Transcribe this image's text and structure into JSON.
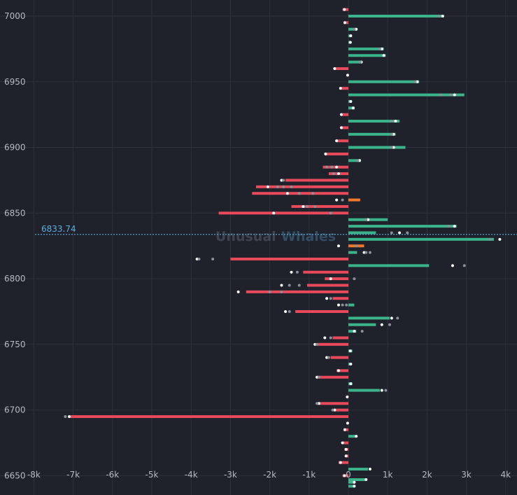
{
  "chart_data": {
    "type": "bar",
    "orientation": "horizontal",
    "watermark": [
      "Unusual",
      "Whales"
    ],
    "spot": {
      "price": 6833.74,
      "label": "6833.74"
    },
    "x_ticks": [
      -8000,
      -7000,
      -6000,
      -5000,
      -4000,
      -3000,
      -2000,
      -1000,
      0,
      1000,
      2000,
      3000,
      4000
    ],
    "x_tick_labels": [
      "-8k",
      "-7k",
      "-6k",
      "-5k",
      "-4k",
      "-3k",
      "-2k",
      "-1k",
      "0",
      "1k",
      "2k",
      "3k",
      "4k"
    ],
    "y_ticks": [
      6650,
      6700,
      6750,
      6800,
      6850,
      6900,
      6950,
      7000
    ],
    "xlim": [
      -8300,
      4300
    ],
    "ylim": [
      6650,
      7010
    ],
    "colors": {
      "positive": "#3bb38b",
      "negative": "#e8495b",
      "highlight": "#f0782a",
      "marker": "#ffffff",
      "marker_faded": "#8a8f98"
    },
    "bars": [
      {
        "strike": 7005,
        "value": -150,
        "markers": [
          -100
        ]
      },
      {
        "strike": 7000,
        "value": 2400,
        "markers": [
          2400,
          2300
        ]
      },
      {
        "strike": 6995,
        "value": -120,
        "markers": [
          -90
        ]
      },
      {
        "strike": 6990,
        "value": 200,
        "markers": [
          200,
          150
        ]
      },
      {
        "strike": 6985,
        "value": 80,
        "markers": [
          60
        ]
      },
      {
        "strike": 6980,
        "value": 70,
        "markers": [
          50
        ]
      },
      {
        "strike": 6975,
        "value": 900,
        "markers": [
          850,
          800
        ]
      },
      {
        "strike": 6970,
        "value": 950,
        "markers": [
          900
        ]
      },
      {
        "strike": 6965,
        "value": 350,
        "markers": [
          330,
          300
        ]
      },
      {
        "strike": 6960,
        "value": -350,
        "markers": [
          -350
        ]
      },
      {
        "strike": 6955,
        "value": -30,
        "markers": [
          -20
        ]
      },
      {
        "strike": 6950,
        "value": 1800,
        "markers": [
          1750,
          1700
        ]
      },
      {
        "strike": 6945,
        "value": -200,
        "markers": [
          -200
        ]
      },
      {
        "strike": 6940,
        "value": 2950,
        "markers": [
          2700,
          2600,
          2350
        ]
      },
      {
        "strike": 6935,
        "value": 80,
        "markers": [
          60
        ]
      },
      {
        "strike": 6930,
        "value": 160,
        "markers": [
          120
        ]
      },
      {
        "strike": 6925,
        "value": -180,
        "markers": [
          -180
        ]
      },
      {
        "strike": 6920,
        "value": 1300,
        "markers": [
          1200,
          1100
        ]
      },
      {
        "strike": 6915,
        "value": -200,
        "markers": [
          -180
        ]
      },
      {
        "strike": 6910,
        "value": 1200,
        "markers": [
          1150,
          1100
        ]
      },
      {
        "strike": 6905,
        "value": -300,
        "markers": [
          -300
        ]
      },
      {
        "strike": 6900,
        "value": 1450,
        "markers": [
          1150,
          1100
        ]
      },
      {
        "strike": 6895,
        "value": -600,
        "markers": [
          -580
        ]
      },
      {
        "strike": 6890,
        "value": 320,
        "markers": [
          280,
          240
        ]
      },
      {
        "strike": 6885,
        "value": -650,
        "markers": [
          -300,
          -420,
          -550
        ]
      },
      {
        "strike": 6880,
        "value": -500,
        "markers": [
          -250,
          -380
        ]
      },
      {
        "strike": 6875,
        "value": -1600,
        "markers": [
          -1700,
          -1650
        ]
      },
      {
        "strike": 6870,
        "value": -2350,
        "markers": [
          -2050,
          -1800,
          -1650,
          -1450
        ]
      },
      {
        "strike": 6865,
        "value": -2450,
        "markers": [
          -1550,
          -1250,
          -900
        ]
      },
      {
        "strike": 6860,
        "value": 300,
        "markers": [
          -300,
          -150
        ],
        "highlight": true
      },
      {
        "strike": 6855,
        "value": -1450,
        "markers": [
          -1150,
          -1050,
          -850
        ]
      },
      {
        "strike": 6850,
        "value": -3300,
        "markers": [
          -1900,
          -450
        ]
      },
      {
        "strike": 6845,
        "value": 1000,
        "markers": [
          500,
          450
        ]
      },
      {
        "strike": 6840,
        "value": 2750,
        "markers": [
          2700,
          2550
        ]
      },
      {
        "strike": 6835,
        "value": 700,
        "markers": [
          1300,
          1100,
          1500
        ]
      },
      {
        "strike": 6830,
        "value": 3700,
        "markers": [
          3850,
          3600
        ]
      },
      {
        "strike": 6825,
        "value": 400,
        "markers": [
          -250,
          200
        ],
        "highlight": true
      },
      {
        "strike": 6820,
        "value": 220,
        "markers": [
          400,
          550,
          450
        ]
      },
      {
        "strike": 6815,
        "value": -3000,
        "markers": [
          -3850,
          -3800,
          -3450
        ]
      },
      {
        "strike": 6810,
        "value": 2050,
        "markers": [
          2650,
          2950
        ]
      },
      {
        "strike": 6805,
        "value": -1150,
        "markers": [
          -1450,
          -1300
        ]
      },
      {
        "strike": 6800,
        "value": -600,
        "markers": [
          -450,
          150
        ]
      },
      {
        "strike": 6795,
        "value": -1050,
        "markers": [
          -1700,
          -1500,
          -1250
        ]
      },
      {
        "strike": 6790,
        "value": -2600,
        "markers": [
          -2800,
          -2000,
          -1700
        ]
      },
      {
        "strike": 6785,
        "value": -400,
        "markers": [
          -550,
          -450
        ]
      },
      {
        "strike": 6780,
        "value": 150,
        "markers": [
          -250,
          -150,
          -50
        ]
      },
      {
        "strike": 6775,
        "value": -1350,
        "markers": [
          -1600,
          -1500
        ]
      },
      {
        "strike": 6770,
        "value": 1050,
        "markers": [
          1100,
          1250
        ]
      },
      {
        "strike": 6765,
        "value": 700,
        "markers": [
          850,
          1050
        ]
      },
      {
        "strike": 6760,
        "value": 200,
        "markers": [
          150,
          350
        ]
      },
      {
        "strike": 6755,
        "value": -400,
        "markers": [
          -600,
          -450
        ]
      },
      {
        "strike": 6750,
        "value": -800,
        "markers": [
          -850,
          -800
        ]
      },
      {
        "strike": 6745,
        "value": 100,
        "markers": [
          50
        ]
      },
      {
        "strike": 6740,
        "value": -450,
        "markers": [
          -550,
          -500
        ]
      },
      {
        "strike": 6735,
        "value": 80,
        "markers": [
          60
        ]
      },
      {
        "strike": 6730,
        "value": -300,
        "markers": [
          -250
        ]
      },
      {
        "strike": 6725,
        "value": -800,
        "markers": [
          -800,
          -750
        ]
      },
      {
        "strike": 6720,
        "value": 100,
        "markers": [
          60
        ]
      },
      {
        "strike": 6715,
        "value": 800,
        "markers": [
          850,
          950
        ]
      },
      {
        "strike": 6710,
        "value": -50,
        "markers": [
          -30
        ]
      },
      {
        "strike": 6705,
        "value": -750,
        "markers": [
          -750,
          -800
        ]
      },
      {
        "strike": 6700,
        "value": -350,
        "markers": [
          -350,
          -400
        ]
      },
      {
        "strike": 6695,
        "value": -7100,
        "markers": [
          -7100,
          -7200
        ]
      },
      {
        "strike": 6690,
        "value": -30,
        "markers": [
          -20
        ]
      },
      {
        "strike": 6685,
        "value": -120,
        "markers": [
          -90
        ]
      },
      {
        "strike": 6680,
        "value": 200,
        "markers": [
          200
        ]
      },
      {
        "strike": 6675,
        "value": -150,
        "markers": [
          -150
        ]
      },
      {
        "strike": 6670,
        "value": -100,
        "markers": [
          -60
        ]
      },
      {
        "strike": 6665,
        "value": -80,
        "markers": [
          -60
        ]
      },
      {
        "strike": 6660,
        "value": -250,
        "markers": [
          -200
        ]
      },
      {
        "strike": 6655,
        "value": 500,
        "markers": [
          550
        ]
      },
      {
        "strike": 6650,
        "value": -150,
        "markers": [
          -100
        ]
      },
      {
        "strike": 6647,
        "value": 450,
        "markers": [
          450
        ]
      },
      {
        "strike": 6645,
        "value": 150,
        "markers": [
          150
        ]
      },
      {
        "strike": 6642,
        "value": 150,
        "markers": [
          150
        ]
      }
    ]
  }
}
